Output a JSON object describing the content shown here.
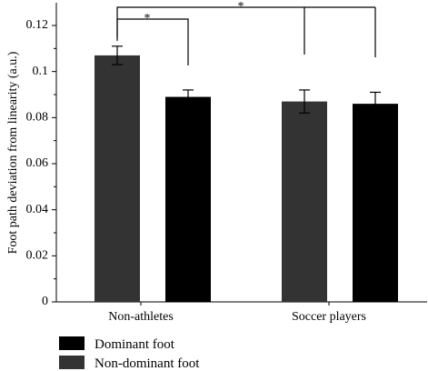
{
  "chart_data": {
    "type": "bar",
    "title": "",
    "xlabel": "",
    "ylabel": "Foot path deviation from linearity (a.u.)",
    "ylim": [
      0,
      0.12
    ],
    "yticks": [
      0,
      0.02,
      0.04,
      0.06,
      0.08,
      0.1,
      0.12
    ],
    "ytick_labels": [
      "0",
      "0.02",
      "0.04",
      "0.06",
      "0.08",
      "0.1",
      "0.12"
    ],
    "categories": [
      "Non-athletes",
      "Soccer players"
    ],
    "series": [
      {
        "name": "Non-dominant foot",
        "color": "#333333",
        "values": [
          0.107,
          0.087
        ],
        "errors": [
          0.004,
          0.005
        ]
      },
      {
        "name": "Dominant foot",
        "color": "#000000",
        "values": [
          0.089,
          0.086
        ],
        "errors": [
          0.003,
          0.005
        ]
      }
    ],
    "legend": {
      "placement": "bottom-left",
      "entries": [
        {
          "label": "Dominant foot",
          "color": "#000000"
        },
        {
          "label": "Non-dominant foot",
          "color": "#333333"
        }
      ]
    },
    "significance": [
      {
        "label": "*",
        "between": "Non-athletes: Non-dominant foot vs Dominant foot"
      },
      {
        "label": "*",
        "between": "Non-athletes Non-dominant foot vs Soccer players"
      }
    ]
  }
}
